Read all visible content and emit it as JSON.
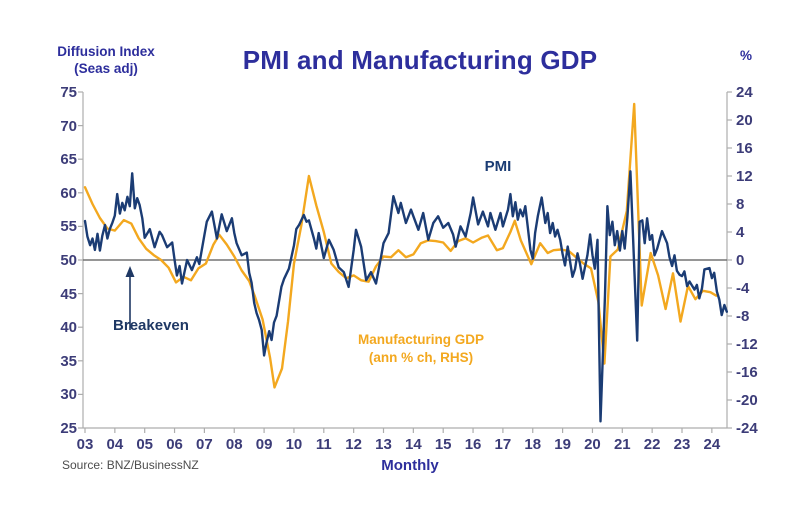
{
  "title": "PMI and Manufacturing GDP",
  "left_axis_header": {
    "line1": "Diffusion Index",
    "line2": "(Seas adj)"
  },
  "right_axis_header": "%",
  "x_axis_label": "Monthly",
  "source": "Source: BNZ/BusinessNZ",
  "annotations": {
    "pmi": "PMI",
    "breakeven": "Breakeven",
    "gdp_line1": "Manufacturing GDP",
    "gdp_line2": "(ann % ch, RHS)"
  },
  "colors": {
    "pmi": "#1B3C74",
    "gdp": "#F3A81F",
    "title": "#2D2E9C",
    "tick_label": "#3C3C78",
    "axis": "#ADADAD",
    "breakeven_line": "#737373",
    "source": "#4D4D4D",
    "arrow": "#1F3864"
  },
  "chart_data": {
    "type": "line",
    "title": "PMI and Manufacturing GDP",
    "xlabel": "Monthly",
    "x_ticks": [
      "03",
      "04",
      "05",
      "06",
      "07",
      "08",
      "09",
      "10",
      "11",
      "12",
      "13",
      "14",
      "15",
      "16",
      "17",
      "18",
      "19",
      "20",
      "21",
      "22",
      "23",
      "24"
    ],
    "left_axis": {
      "label": "Diffusion Index (Seas adj)",
      "range": [
        25,
        75
      ],
      "ticks": [
        75,
        70,
        65,
        60,
        55,
        50,
        45,
        40,
        35,
        30,
        25
      ]
    },
    "right_axis": {
      "label": "%",
      "range": [
        -24,
        24
      ],
      "ticks": [
        24,
        20,
        16,
        12,
        8,
        4,
        0,
        -4,
        -8,
        -12,
        -16,
        -20,
        -24
      ]
    },
    "breakeven_value": 50,
    "grid": false,
    "legend": "inline-annotations",
    "series": [
      {
        "name": "Manufacturing GDP (ann % ch, RHS)",
        "id": "gdp-line",
        "axis": "right",
        "points": [
          [
            2003.0,
            10.4
          ],
          [
            2003.25,
            8.0
          ],
          [
            2003.5,
            6.0
          ],
          [
            2003.75,
            4.5
          ],
          [
            2004.0,
            4.2
          ],
          [
            2004.3,
            5.7
          ],
          [
            2004.55,
            5.2
          ],
          [
            2004.8,
            3.1
          ],
          [
            2005.05,
            1.6
          ],
          [
            2005.3,
            0.7
          ],
          [
            2005.55,
            0.0
          ],
          [
            2005.8,
            -1.1
          ],
          [
            2006.05,
            -3.2
          ],
          [
            2006.3,
            -2.4
          ],
          [
            2006.55,
            -2.9
          ],
          [
            2006.8,
            -1.2
          ],
          [
            2007.05,
            -0.5
          ],
          [
            2007.3,
            2.2
          ],
          [
            2007.5,
            3.6
          ],
          [
            2007.75,
            2.2
          ],
          [
            2008.0,
            0.5
          ],
          [
            2008.25,
            -1.5
          ],
          [
            2008.5,
            -3.0
          ],
          [
            2008.7,
            -5.3
          ],
          [
            2008.95,
            -8.5
          ],
          [
            2009.2,
            -14.0
          ],
          [
            2009.35,
            -18.2
          ],
          [
            2009.6,
            -15.5
          ],
          [
            2009.8,
            -8.8
          ],
          [
            2010.0,
            -0.5
          ],
          [
            2010.25,
            5.0
          ],
          [
            2010.5,
            12.0
          ],
          [
            2010.75,
            7.8
          ],
          [
            2011.0,
            4.0
          ],
          [
            2011.25,
            -0.5
          ],
          [
            2011.5,
            -1.7
          ],
          [
            2011.75,
            -2.6
          ],
          [
            2012.0,
            -2.2
          ],
          [
            2012.25,
            -2.9
          ],
          [
            2012.5,
            -3.1
          ],
          [
            2012.75,
            -0.9
          ],
          [
            2013.0,
            0.5
          ],
          [
            2013.25,
            0.4
          ],
          [
            2013.5,
            1.4
          ],
          [
            2013.75,
            0.4
          ],
          [
            2014.0,
            0.8
          ],
          [
            2014.25,
            2.4
          ],
          [
            2014.5,
            2.8
          ],
          [
            2014.75,
            2.7
          ],
          [
            2015.0,
            2.5
          ],
          [
            2015.25,
            1.3
          ],
          [
            2015.5,
            2.7
          ],
          [
            2015.75,
            3.1
          ],
          [
            2016.0,
            2.5
          ],
          [
            2016.3,
            3.2
          ],
          [
            2016.5,
            3.5
          ],
          [
            2016.8,
            1.4
          ],
          [
            2017.0,
            1.7
          ],
          [
            2017.25,
            4.0
          ],
          [
            2017.4,
            5.6
          ],
          [
            2017.6,
            2.8
          ],
          [
            2017.95,
            -0.6
          ],
          [
            2018.25,
            2.4
          ],
          [
            2018.5,
            1.0
          ],
          [
            2018.7,
            1.4
          ],
          [
            2018.95,
            1.5
          ],
          [
            2019.2,
            1.3
          ],
          [
            2019.45,
            0.4
          ],
          [
            2019.7,
            -0.5
          ],
          [
            2019.95,
            -1.2
          ],
          [
            2020.2,
            -6.0
          ],
          [
            2020.4,
            -14.8
          ],
          [
            2020.6,
            0.5
          ],
          [
            2020.85,
            1.5
          ],
          [
            2021.15,
            7.0
          ],
          [
            2021.4,
            22.3
          ],
          [
            2021.65,
            -6.5
          ],
          [
            2021.95,
            1.0
          ],
          [
            2022.2,
            -2.2
          ],
          [
            2022.45,
            -7.0
          ],
          [
            2022.7,
            -1.9
          ],
          [
            2022.95,
            -8.8
          ],
          [
            2023.2,
            -3.7
          ],
          [
            2023.45,
            -5.6
          ],
          [
            2023.7,
            -4.4
          ],
          [
            2023.95,
            -4.6
          ],
          [
            2024.15,
            -5.1
          ]
        ]
      },
      {
        "name": "PMI",
        "id": "pmi-line",
        "axis": "left",
        "points": [
          [
            2003.0,
            55.8
          ],
          [
            2003.08,
            53.5
          ],
          [
            2003.17,
            52.2
          ],
          [
            2003.25,
            53.2
          ],
          [
            2003.33,
            51.5
          ],
          [
            2003.42,
            53.9
          ],
          [
            2003.5,
            51.4
          ],
          [
            2003.58,
            53.6
          ],
          [
            2003.67,
            55.2
          ],
          [
            2003.75,
            53.2
          ],
          [
            2003.83,
            54.6
          ],
          [
            2003.92,
            55.6
          ],
          [
            2004.0,
            56.6
          ],
          [
            2004.08,
            59.8
          ],
          [
            2004.17,
            56.9
          ],
          [
            2004.25,
            58.5
          ],
          [
            2004.33,
            57.4
          ],
          [
            2004.42,
            59.4
          ],
          [
            2004.5,
            58.0
          ],
          [
            2004.58,
            62.9
          ],
          [
            2004.67,
            57.7
          ],
          [
            2004.75,
            59.2
          ],
          [
            2004.83,
            58.2
          ],
          [
            2004.92,
            56.2
          ],
          [
            2005.0,
            53.3
          ],
          [
            2005.17,
            54.6
          ],
          [
            2005.33,
            51.9
          ],
          [
            2005.5,
            54.2
          ],
          [
            2005.58,
            53.7
          ],
          [
            2005.75,
            51.9
          ],
          [
            2005.92,
            52.6
          ],
          [
            2006.0,
            50.0
          ],
          [
            2006.08,
            47.7
          ],
          [
            2006.17,
            49.1
          ],
          [
            2006.25,
            46.5
          ],
          [
            2006.42,
            50.0
          ],
          [
            2006.58,
            48.5
          ],
          [
            2006.75,
            50.4
          ],
          [
            2006.83,
            49.4
          ],
          [
            2007.0,
            53.7
          ],
          [
            2007.08,
            55.7
          ],
          [
            2007.25,
            57.2
          ],
          [
            2007.42,
            53.2
          ],
          [
            2007.58,
            56.8
          ],
          [
            2007.75,
            54.3
          ],
          [
            2007.92,
            56.2
          ],
          [
            2008.0,
            54.0
          ],
          [
            2008.08,
            52.5
          ],
          [
            2008.25,
            50.7
          ],
          [
            2008.42,
            51.1
          ],
          [
            2008.5,
            48.1
          ],
          [
            2008.58,
            46.6
          ],
          [
            2008.67,
            43.6
          ],
          [
            2008.75,
            42.1
          ],
          [
            2008.83,
            41.1
          ],
          [
            2008.92,
            39.6
          ],
          [
            2009.0,
            35.8
          ],
          [
            2009.08,
            37.7
          ],
          [
            2009.17,
            39.4
          ],
          [
            2009.25,
            38.1
          ],
          [
            2009.33,
            40.7
          ],
          [
            2009.42,
            41.7
          ],
          [
            2009.58,
            46.0
          ],
          [
            2009.67,
            47.2
          ],
          [
            2009.83,
            48.7
          ],
          [
            2010.0,
            52.2
          ],
          [
            2010.08,
            54.6
          ],
          [
            2010.17,
            55.2
          ],
          [
            2010.33,
            56.7
          ],
          [
            2010.42,
            55.7
          ],
          [
            2010.5,
            55.9
          ],
          [
            2010.67,
            53.2
          ],
          [
            2010.75,
            51.7
          ],
          [
            2010.83,
            54.0
          ],
          [
            2011.0,
            50.3
          ],
          [
            2011.17,
            53.0
          ],
          [
            2011.33,
            51.5
          ],
          [
            2011.5,
            48.9
          ],
          [
            2011.67,
            48.2
          ],
          [
            2011.83,
            46.0
          ],
          [
            2012.0,
            51.5
          ],
          [
            2012.08,
            54.5
          ],
          [
            2012.25,
            52.0
          ],
          [
            2012.42,
            47.0
          ],
          [
            2012.58,
            48.2
          ],
          [
            2012.75,
            46.5
          ],
          [
            2012.92,
            50.5
          ],
          [
            2013.0,
            52.5
          ],
          [
            2013.17,
            54.0
          ],
          [
            2013.33,
            59.5
          ],
          [
            2013.5,
            57.0
          ],
          [
            2013.58,
            58.5
          ],
          [
            2013.75,
            55.5
          ],
          [
            2013.92,
            57.5
          ],
          [
            2014.0,
            56.5
          ],
          [
            2014.17,
            54.5
          ],
          [
            2014.33,
            57.0
          ],
          [
            2014.5,
            53.0
          ],
          [
            2014.67,
            55.5
          ],
          [
            2014.83,
            56.5
          ],
          [
            2015.0,
            54.8
          ],
          [
            2015.17,
            55.5
          ],
          [
            2015.33,
            53.8
          ],
          [
            2015.42,
            52.0
          ],
          [
            2015.58,
            55.0
          ],
          [
            2015.75,
            53.5
          ],
          [
            2015.92,
            57.0
          ],
          [
            2016.0,
            59.3
          ],
          [
            2016.17,
            55.3
          ],
          [
            2016.33,
            57.2
          ],
          [
            2016.5,
            55.0
          ],
          [
            2016.58,
            57.0
          ],
          [
            2016.75,
            54.5
          ],
          [
            2016.92,
            57.0
          ],
          [
            2017.0,
            55.0
          ],
          [
            2017.17,
            57.5
          ],
          [
            2017.25,
            59.8
          ],
          [
            2017.33,
            56.5
          ],
          [
            2017.42,
            58.6
          ],
          [
            2017.5,
            56.0
          ],
          [
            2017.58,
            57.5
          ],
          [
            2017.67,
            56.5
          ],
          [
            2017.75,
            58.0
          ],
          [
            2017.83,
            55.0
          ],
          [
            2017.92,
            51.5
          ],
          [
            2018.0,
            50.2
          ],
          [
            2018.08,
            54.0
          ],
          [
            2018.17,
            56.5
          ],
          [
            2018.3,
            59.3
          ],
          [
            2018.42,
            55.5
          ],
          [
            2018.5,
            57.0
          ],
          [
            2018.58,
            54.0
          ],
          [
            2018.67,
            55.5
          ],
          [
            2018.75,
            53.5
          ],
          [
            2018.83,
            54.5
          ],
          [
            2018.92,
            53.0
          ],
          [
            2019.0,
            50.9
          ],
          [
            2019.08,
            49.2
          ],
          [
            2019.17,
            52.0
          ],
          [
            2019.33,
            47.5
          ],
          [
            2019.42,
            48.7
          ],
          [
            2019.5,
            51.0
          ],
          [
            2019.58,
            49.5
          ],
          [
            2019.67,
            47.2
          ],
          [
            2019.83,
            50.7
          ],
          [
            2019.92,
            53.8
          ],
          [
            2020.0,
            50.7
          ],
          [
            2020.08,
            48.7
          ],
          [
            2020.17,
            53.0
          ],
          [
            2020.27,
            26.0
          ],
          [
            2020.42,
            44.8
          ],
          [
            2020.5,
            58.0
          ],
          [
            2020.58,
            53.7
          ],
          [
            2020.67,
            55.7
          ],
          [
            2020.75,
            52.2
          ],
          [
            2020.83,
            54.3
          ],
          [
            2020.92,
            51.4
          ],
          [
            2021.0,
            54.3
          ],
          [
            2021.08,
            51.7
          ],
          [
            2021.17,
            56.4
          ],
          [
            2021.27,
            63.2
          ],
          [
            2021.5,
            38.0
          ],
          [
            2021.58,
            55.7
          ],
          [
            2021.67,
            55.9
          ],
          [
            2021.75,
            52.5
          ],
          [
            2021.83,
            56.2
          ],
          [
            2021.92,
            53.0
          ],
          [
            2022.0,
            53.7
          ],
          [
            2022.08,
            50.7
          ],
          [
            2022.17,
            51.7
          ],
          [
            2022.33,
            54.3
          ],
          [
            2022.5,
            52.5
          ],
          [
            2022.58,
            50.4
          ],
          [
            2022.67,
            49.1
          ],
          [
            2022.75,
            50.7
          ],
          [
            2022.83,
            48.4
          ],
          [
            2022.92,
            47.8
          ],
          [
            2023.0,
            47.6
          ],
          [
            2023.08,
            48.3
          ],
          [
            2023.17,
            46.1
          ],
          [
            2023.25,
            46.8
          ],
          [
            2023.42,
            45.6
          ],
          [
            2023.5,
            46.3
          ],
          [
            2023.58,
            44.3
          ],
          [
            2023.67,
            45.8
          ],
          [
            2023.75,
            48.6
          ],
          [
            2023.92,
            48.8
          ],
          [
            2024.0,
            47.3
          ],
          [
            2024.08,
            48.1
          ],
          [
            2024.17,
            45.3
          ],
          [
            2024.25,
            44.1
          ],
          [
            2024.33,
            41.8
          ],
          [
            2024.42,
            43.3
          ],
          [
            2024.5,
            42.3
          ]
        ]
      }
    ]
  }
}
